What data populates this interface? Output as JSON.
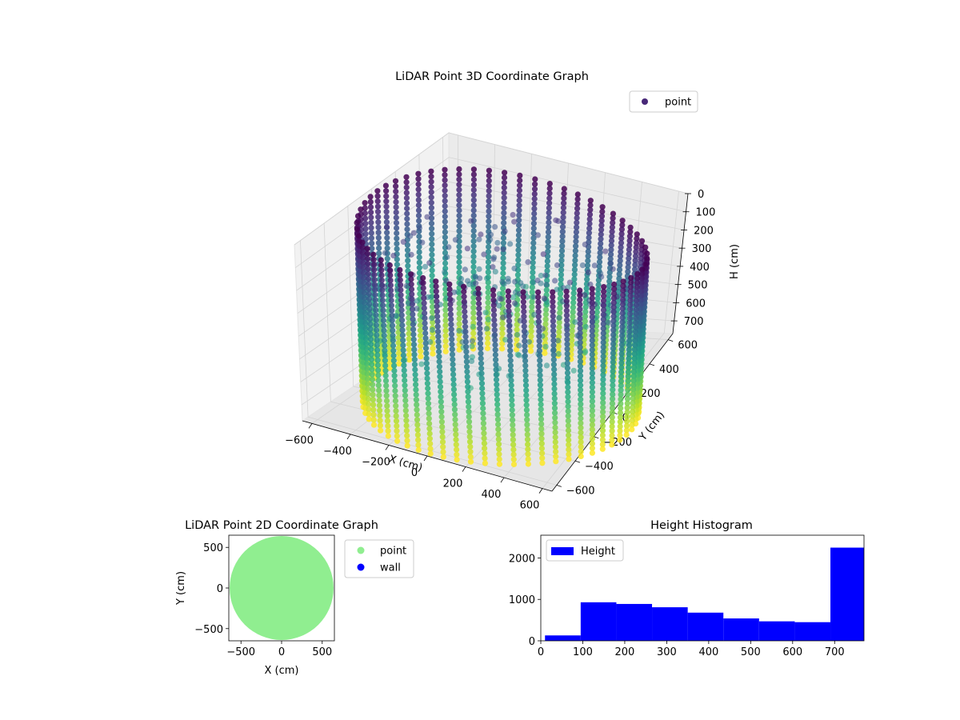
{
  "chart_data": [
    {
      "type": "scatter",
      "projection": "3d",
      "title": "LiDAR Point 3D Coordinate Graph",
      "xlabel": "X (cm)",
      "ylabel": "Y (cm)",
      "zlabel": "H (cm)",
      "xlim": [
        -650,
        650
      ],
      "ylim": [
        -650,
        650
      ],
      "zlim": [
        770,
        0
      ],
      "z_inverted": true,
      "xticks": [
        -600,
        -400,
        -200,
        0,
        200,
        400,
        600
      ],
      "yticks": [
        -600,
        -400,
        -200,
        0,
        200,
        400,
        600
      ],
      "zticks": [
        0,
        100,
        200,
        300,
        400,
        500,
        600,
        700
      ],
      "colormap": "viridis",
      "grid": true,
      "legend": "top-right",
      "series": [
        {
          "name": "point",
          "color": "#482878",
          "shape": "cylindrical wall of vertical point columns",
          "radius": 620,
          "columns": 60,
          "height_range": [
            0,
            770
          ]
        }
      ]
    },
    {
      "type": "scatter",
      "title": "LiDAR Point 2D Coordinate Graph",
      "xlabel": "X (cm)",
      "ylabel": "Y (cm)",
      "xlim": [
        -650,
        650
      ],
      "ylim": [
        -650,
        650
      ],
      "xticks": [
        -500,
        0,
        500
      ],
      "yticks": [
        -500,
        0,
        500
      ],
      "legend": "outside-right",
      "series": [
        {
          "name": "point",
          "color": "#90ee90",
          "radius": 640
        },
        {
          "name": "wall",
          "color": "#0000ff"
        }
      ]
    },
    {
      "type": "bar",
      "title": "Height Histogram",
      "xlim": [
        0,
        770
      ],
      "ylim": [
        0,
        2550
      ],
      "xticks": [
        0,
        100,
        200,
        300,
        400,
        500,
        600,
        700
      ],
      "yticks": [
        0,
        1000,
        2000
      ],
      "legend": "top-left",
      "series": [
        {
          "name": "Height",
          "color": "#0000ff",
          "bins": [
            {
              "x0": 10,
              "x1": 95,
              "count": 130
            },
            {
              "x0": 95,
              "x1": 180,
              "count": 930
            },
            {
              "x0": 180,
              "x1": 265,
              "count": 890
            },
            {
              "x0": 265,
              "x1": 350,
              "count": 810
            },
            {
              "x0": 350,
              "x1": 435,
              "count": 680
            },
            {
              "x0": 435,
              "x1": 520,
              "count": 540
            },
            {
              "x0": 520,
              "x1": 605,
              "count": 470
            },
            {
              "x0": 605,
              "x1": 690,
              "count": 450
            },
            {
              "x0": 690,
              "x1": 770,
              "count": 2250
            }
          ]
        }
      ]
    }
  ]
}
